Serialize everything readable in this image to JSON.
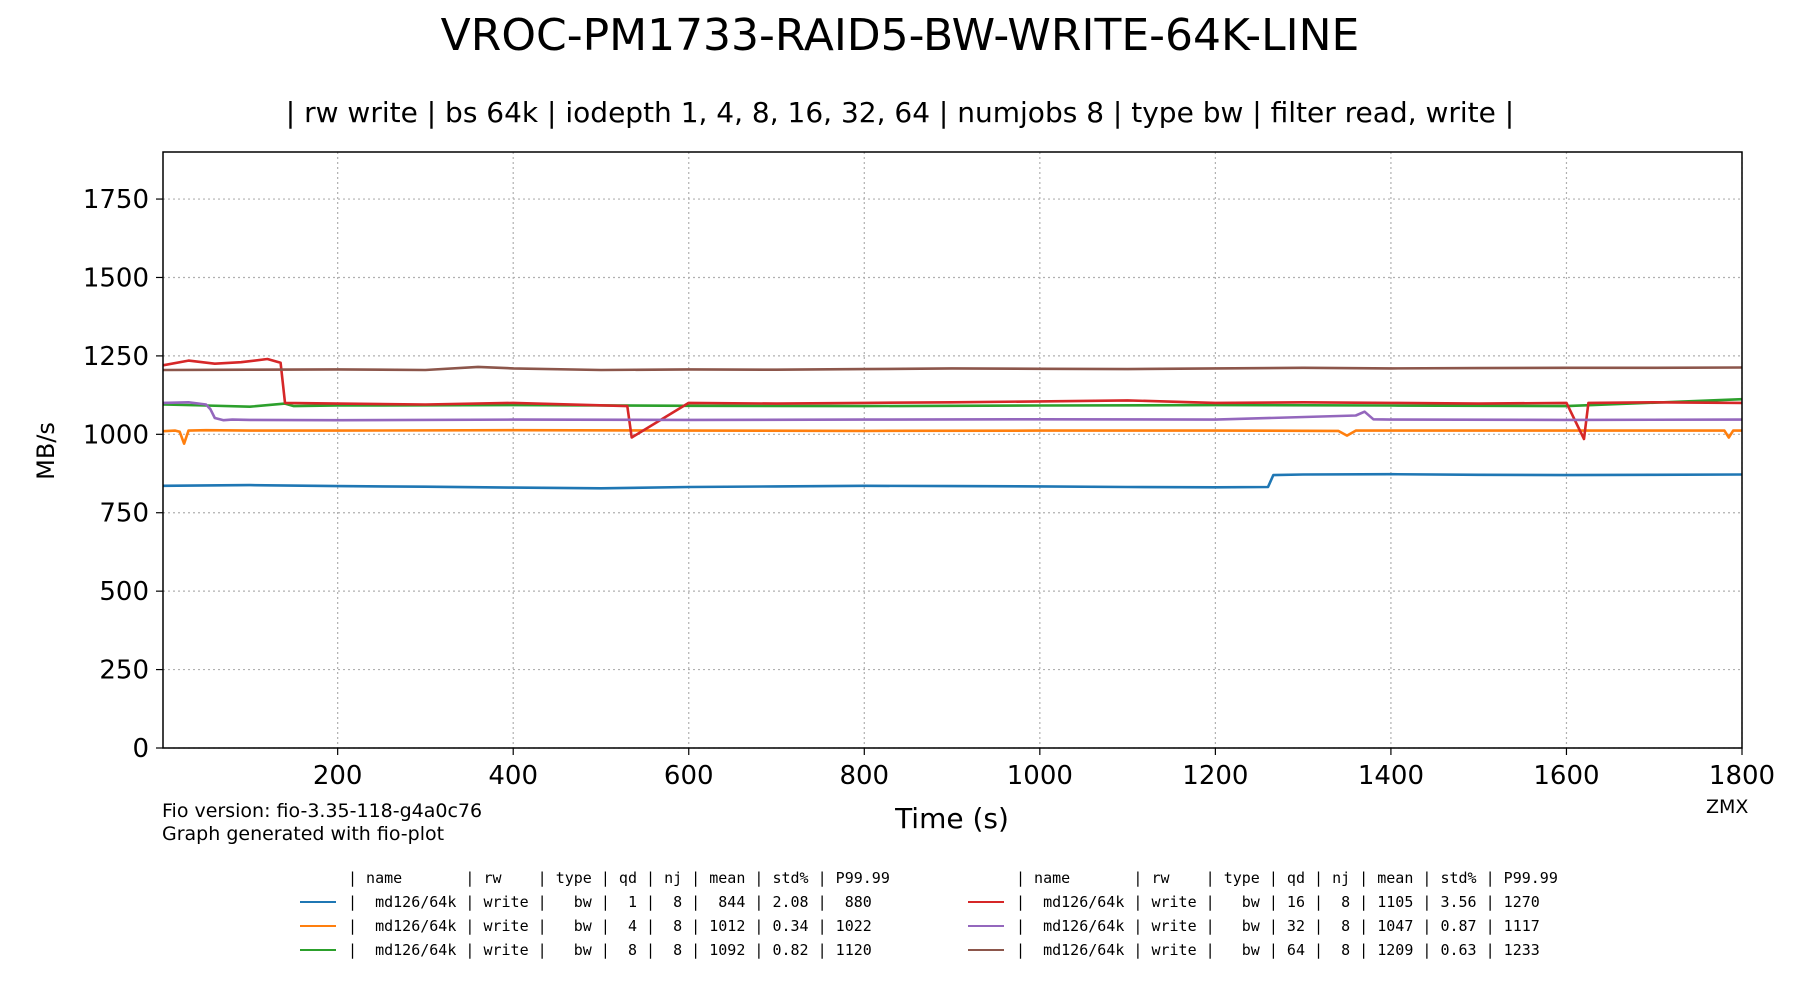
{
  "chart_data": {
    "type": "line",
    "title": "VROC-PM1733-RAID5-BW-WRITE-64K-LINE",
    "subtitle": "| rw write | bs 64k | iodepth 1, 4, 8, 16, 32, 64 | numjobs 8 | type bw | filter read, write |",
    "xlabel": "Time (s)",
    "ylabel": "MB/s",
    "xlim": [
      1,
      1800
    ],
    "ylim": [
      0,
      1900
    ],
    "xticks": [
      200,
      400,
      600,
      800,
      1000,
      1200,
      1400,
      1600,
      1800
    ],
    "yticks": [
      0,
      250,
      500,
      750,
      1000,
      1250,
      1500,
      1750
    ],
    "grid": true,
    "series": [
      {
        "name": "md126/64k",
        "color": "#1f77b4",
        "x": [
          1,
          100,
          200,
          300,
          400,
          500,
          600,
          700,
          800,
          900,
          1000,
          1100,
          1200,
          1260,
          1266,
          1300,
          1400,
          1500,
          1600,
          1700,
          1800
        ],
        "y": [
          836,
          838,
          835,
          833,
          830,
          828,
          832,
          834,
          836,
          835,
          834,
          832,
          831,
          832,
          870,
          872,
          873,
          871,
          870,
          871,
          872
        ]
      },
      {
        "name": "md126/64k",
        "color": "#ff7f0e",
        "x": [
          1,
          15,
          20,
          25,
          30,
          50,
          100,
          200,
          400,
          600,
          800,
          1000,
          1200,
          1340,
          1350,
          1360,
          1400,
          1600,
          1780,
          1785,
          1790,
          1800
        ],
        "y": [
          1010,
          1012,
          1008,
          970,
          1012,
          1013,
          1012,
          1012,
          1013,
          1012,
          1011,
          1012,
          1012,
          1011,
          996,
          1012,
          1012,
          1012,
          1012,
          990,
          1012,
          1012
        ]
      },
      {
        "name": "md126/64k",
        "color": "#2ca02c",
        "x": [
          1,
          50,
          100,
          140,
          150,
          200,
          400,
          600,
          800,
          1000,
          1200,
          1400,
          1600,
          1800
        ],
        "y": [
          1095,
          1092,
          1088,
          1098,
          1090,
          1092,
          1093,
          1091,
          1090,
          1092,
          1093,
          1092,
          1090,
          1112
        ]
      },
      {
        "name": "md126/64k",
        "color": "#d62728",
        "x": [
          1,
          30,
          60,
          90,
          120,
          135,
          140,
          200,
          300,
          400,
          530,
          535,
          600,
          700,
          800,
          900,
          1000,
          1100,
          1200,
          1300,
          1400,
          1500,
          1600,
          1620,
          1625,
          1700,
          1800
        ],
        "y": [
          1220,
          1235,
          1225,
          1230,
          1240,
          1228,
          1100,
          1098,
          1095,
          1100,
          1090,
          990,
          1100,
          1098,
          1100,
          1102,
          1105,
          1108,
          1100,
          1102,
          1100,
          1098,
          1100,
          985,
          1100,
          1102,
          1100
        ]
      },
      {
        "name": "md126/64k",
        "color": "#9467bd",
        "x": [
          1,
          30,
          50,
          55,
          60,
          70,
          80,
          100,
          200,
          400,
          600,
          800,
          1000,
          1200,
          1360,
          1370,
          1380,
          1400,
          1600,
          1800
        ],
        "y": [
          1100,
          1102,
          1095,
          1080,
          1052,
          1045,
          1047,
          1046,
          1045,
          1047,
          1046,
          1047,
          1048,
          1047,
          1060,
          1072,
          1048,
          1047,
          1046,
          1047
        ]
      },
      {
        "name": "md126/64k",
        "color": "#8c564b",
        "x": [
          1,
          100,
          200,
          300,
          360,
          400,
          500,
          600,
          700,
          800,
          900,
          1000,
          1100,
          1200,
          1300,
          1400,
          1500,
          1600,
          1700,
          1800
        ],
        "y": [
          1205,
          1206,
          1207,
          1205,
          1215,
          1210,
          1205,
          1207,
          1206,
          1208,
          1210,
          1209,
          1208,
          1210,
          1212,
          1210,
          1211,
          1212,
          1212,
          1213
        ]
      }
    ],
    "legend": {
      "header": "| name       | rw    | type | qd | nj | mean | std% | P99.99",
      "rows": [
        "|  md126/64k | write |   bw |  1 |  8 |  844 | 2.08 |  880",
        "|  md126/64k | write |   bw |  4 |  8 | 1012 | 0.34 | 1022",
        "|  md126/64k | write |   bw |  8 |  8 | 1092 | 0.82 | 1120",
        "|  md126/64k | write |   bw | 16 |  8 | 1105 | 3.56 | 1270",
        "|  md126/64k | write |   bw | 32 |  8 | 1047 | 0.87 | 1117",
        "|  md126/64k | write |   bw | 64 |  8 | 1209 | 0.63 | 1233"
      ]
    }
  },
  "footer": {
    "fio_version": "Fio version: fio-3.35-118-g4a0c76",
    "generated": "Graph generated with fio-plot",
    "credit": "ZMX"
  }
}
